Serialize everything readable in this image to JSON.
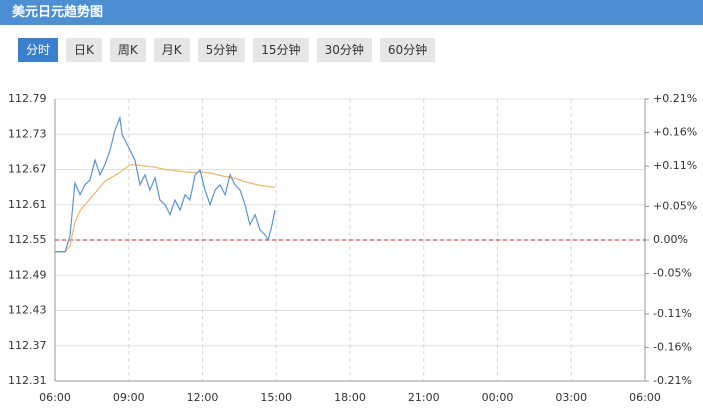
{
  "header": {
    "title": "美元日元趋势图",
    "tabs": [
      "分时",
      "日K",
      "周K",
      "月K",
      "5分钟",
      "15分钟",
      "30分钟",
      "60分钟"
    ],
    "active_tab": 0
  },
  "chart_data": {
    "type": "line",
    "x": [
      6.0,
      6.41,
      6.61,
      6.81,
      7.02,
      7.22,
      7.42,
      7.63,
      7.83,
      8.03,
      8.24,
      8.44,
      8.64,
      8.73,
      8.85,
      9.05,
      9.25,
      9.46,
      9.66,
      9.86,
      10.07,
      10.27,
      10.48,
      10.68,
      10.88,
      11.09,
      11.29,
      11.49,
      11.7,
      11.9,
      12.1,
      12.31,
      12.51,
      12.71,
      12.92,
      13.12,
      13.32,
      13.53,
      13.73,
      13.93,
      14.14,
      14.34,
      14.54,
      14.67,
      14.83,
      14.95
    ],
    "series": [
      {
        "color": "#5a93d8",
        "values": [
          112.53,
          112.53,
          112.557,
          112.647,
          112.627,
          112.644,
          112.652,
          112.686,
          112.661,
          112.678,
          112.703,
          112.737,
          112.758,
          112.729,
          112.72,
          112.703,
          112.686,
          112.644,
          112.661,
          112.635,
          112.656,
          112.618,
          112.61,
          112.593,
          112.618,
          112.601,
          112.627,
          112.618,
          112.661,
          112.669,
          112.635,
          112.61,
          112.635,
          112.644,
          112.627,
          112.661,
          112.644,
          112.635,
          112.61,
          112.576,
          112.593,
          112.567,
          112.559,
          112.55,
          112.576,
          112.601
        ]
      },
      {
        "color": "#f0b565",
        "values": [
          112.53,
          112.53,
          112.54,
          112.58,
          112.6,
          112.61,
          112.62,
          112.63,
          112.64,
          112.65,
          112.655,
          112.66,
          112.665,
          112.668,
          112.672,
          112.678,
          112.678,
          112.677,
          112.676,
          112.675,
          112.674,
          112.672,
          112.67,
          112.669,
          112.668,
          112.667,
          112.666,
          112.665,
          112.665,
          112.666,
          112.665,
          112.664,
          112.662,
          112.66,
          112.658,
          112.657,
          112.655,
          112.652,
          112.649,
          112.647,
          112.645,
          112.643,
          112.642,
          112.641,
          112.64,
          112.64
        ]
      }
    ],
    "baseline": 112.55,
    "baseline_color": "#c0282d",
    "xlim": [
      6,
      30
    ],
    "xticks": [
      {
        "value": 6,
        "label": "06:00"
      },
      {
        "value": 9,
        "label": "09:00"
      },
      {
        "value": 12,
        "label": "12:00"
      },
      {
        "value": 15,
        "label": "15:00"
      },
      {
        "value": 18,
        "label": "18:00"
      },
      {
        "value": 21,
        "label": "21:00"
      },
      {
        "value": 24,
        "label": "00:00"
      },
      {
        "value": 27,
        "label": "03:00"
      },
      {
        "value": 30,
        "label": "06:00"
      }
    ],
    "ylim": [
      112.31,
      112.79
    ],
    "yticks": [
      112.31,
      112.37,
      112.43,
      112.49,
      112.55,
      112.61,
      112.67,
      112.73,
      112.79
    ],
    "y2lim": [
      -0.21,
      0.21
    ],
    "y2ticks": [
      {
        "value": -0.21,
        "label": "-0.21%"
      },
      {
        "value": -0.16,
        "label": "-0.16%"
      },
      {
        "value": -0.11,
        "label": "-0.11%"
      },
      {
        "value": -0.05,
        "label": "-0.05%"
      },
      {
        "value": 0,
        "label": "0.00%"
      },
      {
        "value": 0.05,
        "label": "+0.05%"
      },
      {
        "value": 0.11,
        "label": "+0.11%"
      },
      {
        "value": 0.16,
        "label": "+0.16%"
      },
      {
        "value": 0.21,
        "label": "+0.21%"
      }
    ],
    "y2_colors": {
      "up": "#d0021b",
      "down": "#2e8b2e",
      "flat": "#999999"
    },
    "grid": true
  }
}
